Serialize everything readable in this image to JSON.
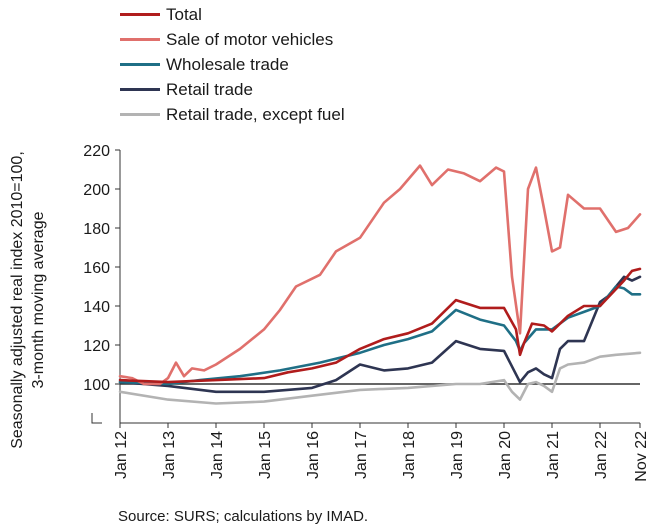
{
  "source": "Source: SURS; calculations by IMAD.",
  "colors": {
    "total": "#b01c1c",
    "motor": "#e0706c",
    "wholesale": "#1f6f86",
    "retail": "#2e3552",
    "retail_ex_fuel": "#b3b3b3",
    "reference_line": "#333333"
  },
  "chart_data": {
    "type": "line",
    "ylabel_lines": [
      "Seasonally adjusted real index 2010=100,",
      "3-month moving average"
    ],
    "xlabel": "",
    "ylim": [
      80,
      220
    ],
    "y_ticks": [
      100,
      120,
      140,
      160,
      180,
      200,
      220
    ],
    "y_axis_break": true,
    "x_ticks": [
      "Jan 12",
      "Jan 13",
      "Jan 14",
      "Jan 15",
      "Jan 16",
      "Jan 17",
      "Jan 18",
      "Jan 19",
      "Jan 20",
      "Jan 21",
      "Jan 22",
      "Nov 22"
    ],
    "reference_line": 100,
    "legend_position": "top",
    "x_start": "Jan 12",
    "x_end": "Nov 22",
    "x_unit": "month",
    "series": [
      {
        "name": "Total",
        "color_key": "total",
        "values": [
          [
            0,
            102
          ],
          [
            12,
            101
          ],
          [
            24,
            102
          ],
          [
            36,
            103
          ],
          [
            42,
            106
          ],
          [
            48,
            108
          ],
          [
            54,
            111
          ],
          [
            60,
            118
          ],
          [
            66,
            123
          ],
          [
            72,
            126
          ],
          [
            78,
            131
          ],
          [
            84,
            143
          ],
          [
            90,
            139
          ],
          [
            96,
            139
          ],
          [
            99,
            128
          ],
          [
            100,
            115
          ],
          [
            101,
            121
          ],
          [
            103,
            131
          ],
          [
            106,
            130
          ],
          [
            108,
            127
          ],
          [
            112,
            135
          ],
          [
            116,
            140
          ],
          [
            120,
            140
          ],
          [
            126,
            153
          ],
          [
            128,
            158
          ],
          [
            130,
            159
          ]
        ]
      },
      {
        "name": "Sale of motor vehicles",
        "color_key": "motor",
        "values": [
          [
            0,
            104
          ],
          [
            3,
            103
          ],
          [
            6,
            100
          ],
          [
            10,
            100
          ],
          [
            12,
            103
          ],
          [
            14,
            111
          ],
          [
            16,
            104
          ],
          [
            18,
            108
          ],
          [
            21,
            107
          ],
          [
            24,
            110
          ],
          [
            30,
            118
          ],
          [
            36,
            128
          ],
          [
            40,
            138
          ],
          [
            44,
            150
          ],
          [
            50,
            156
          ],
          [
            54,
            168
          ],
          [
            60,
            175
          ],
          [
            66,
            193
          ],
          [
            70,
            200
          ],
          [
            75,
            212
          ],
          [
            78,
            202
          ],
          [
            82,
            210
          ],
          [
            86,
            208
          ],
          [
            90,
            204
          ],
          [
            94,
            211
          ],
          [
            96,
            209
          ],
          [
            98,
            155
          ],
          [
            100,
            126
          ],
          [
            102,
            200
          ],
          [
            104,
            211
          ],
          [
            106,
            190
          ],
          [
            108,
            168
          ],
          [
            110,
            170
          ],
          [
            112,
            197
          ],
          [
            116,
            190
          ],
          [
            120,
            190
          ],
          [
            124,
            178
          ],
          [
            127,
            180
          ],
          [
            130,
            187
          ]
        ]
      },
      {
        "name": "Wholesale trade",
        "color_key": "wholesale",
        "values": [
          [
            0,
            101
          ],
          [
            12,
            100
          ],
          [
            20,
            102
          ],
          [
            30,
            104
          ],
          [
            40,
            107
          ],
          [
            50,
            111
          ],
          [
            60,
            116
          ],
          [
            66,
            120
          ],
          [
            72,
            123
          ],
          [
            78,
            127
          ],
          [
            84,
            138
          ],
          [
            90,
            133
          ],
          [
            96,
            130
          ],
          [
            99,
            122
          ],
          [
            100,
            117
          ],
          [
            101,
            121
          ],
          [
            104,
            128
          ],
          [
            108,
            128
          ],
          [
            112,
            134
          ],
          [
            116,
            137
          ],
          [
            120,
            140
          ],
          [
            124,
            150
          ],
          [
            126,
            149
          ],
          [
            128,
            146
          ],
          [
            130,
            146
          ]
        ]
      },
      {
        "name": "Retail trade",
        "color_key": "retail",
        "values": [
          [
            0,
            101
          ],
          [
            12,
            99
          ],
          [
            24,
            96
          ],
          [
            36,
            96
          ],
          [
            48,
            98
          ],
          [
            54,
            102
          ],
          [
            60,
            110
          ],
          [
            66,
            107
          ],
          [
            72,
            108
          ],
          [
            78,
            111
          ],
          [
            84,
            122
          ],
          [
            90,
            118
          ],
          [
            96,
            117
          ],
          [
            99,
            105
          ],
          [
            100,
            101
          ],
          [
            102,
            106
          ],
          [
            104,
            108
          ],
          [
            106,
            105
          ],
          [
            108,
            103
          ],
          [
            110,
            118
          ],
          [
            112,
            122
          ],
          [
            116,
            122
          ],
          [
            120,
            142
          ],
          [
            122,
            145
          ],
          [
            126,
            155
          ],
          [
            128,
            153
          ],
          [
            130,
            155
          ]
        ]
      },
      {
        "name": "Retail trade, except fuel",
        "color_key": "retail_ex_fuel",
        "values": [
          [
            0,
            96
          ],
          [
            12,
            92
          ],
          [
            24,
            90
          ],
          [
            36,
            91
          ],
          [
            48,
            94
          ],
          [
            60,
            97
          ],
          [
            72,
            98
          ],
          [
            78,
            99
          ],
          [
            84,
            100
          ],
          [
            90,
            100
          ],
          [
            96,
            102
          ],
          [
            98,
            96
          ],
          [
            100,
            92
          ],
          [
            102,
            100
          ],
          [
            104,
            101
          ],
          [
            106,
            99
          ],
          [
            108,
            96
          ],
          [
            110,
            108
          ],
          [
            112,
            110
          ],
          [
            116,
            111
          ],
          [
            120,
            114
          ],
          [
            124,
            115
          ],
          [
            130,
            116
          ]
        ]
      }
    ]
  }
}
